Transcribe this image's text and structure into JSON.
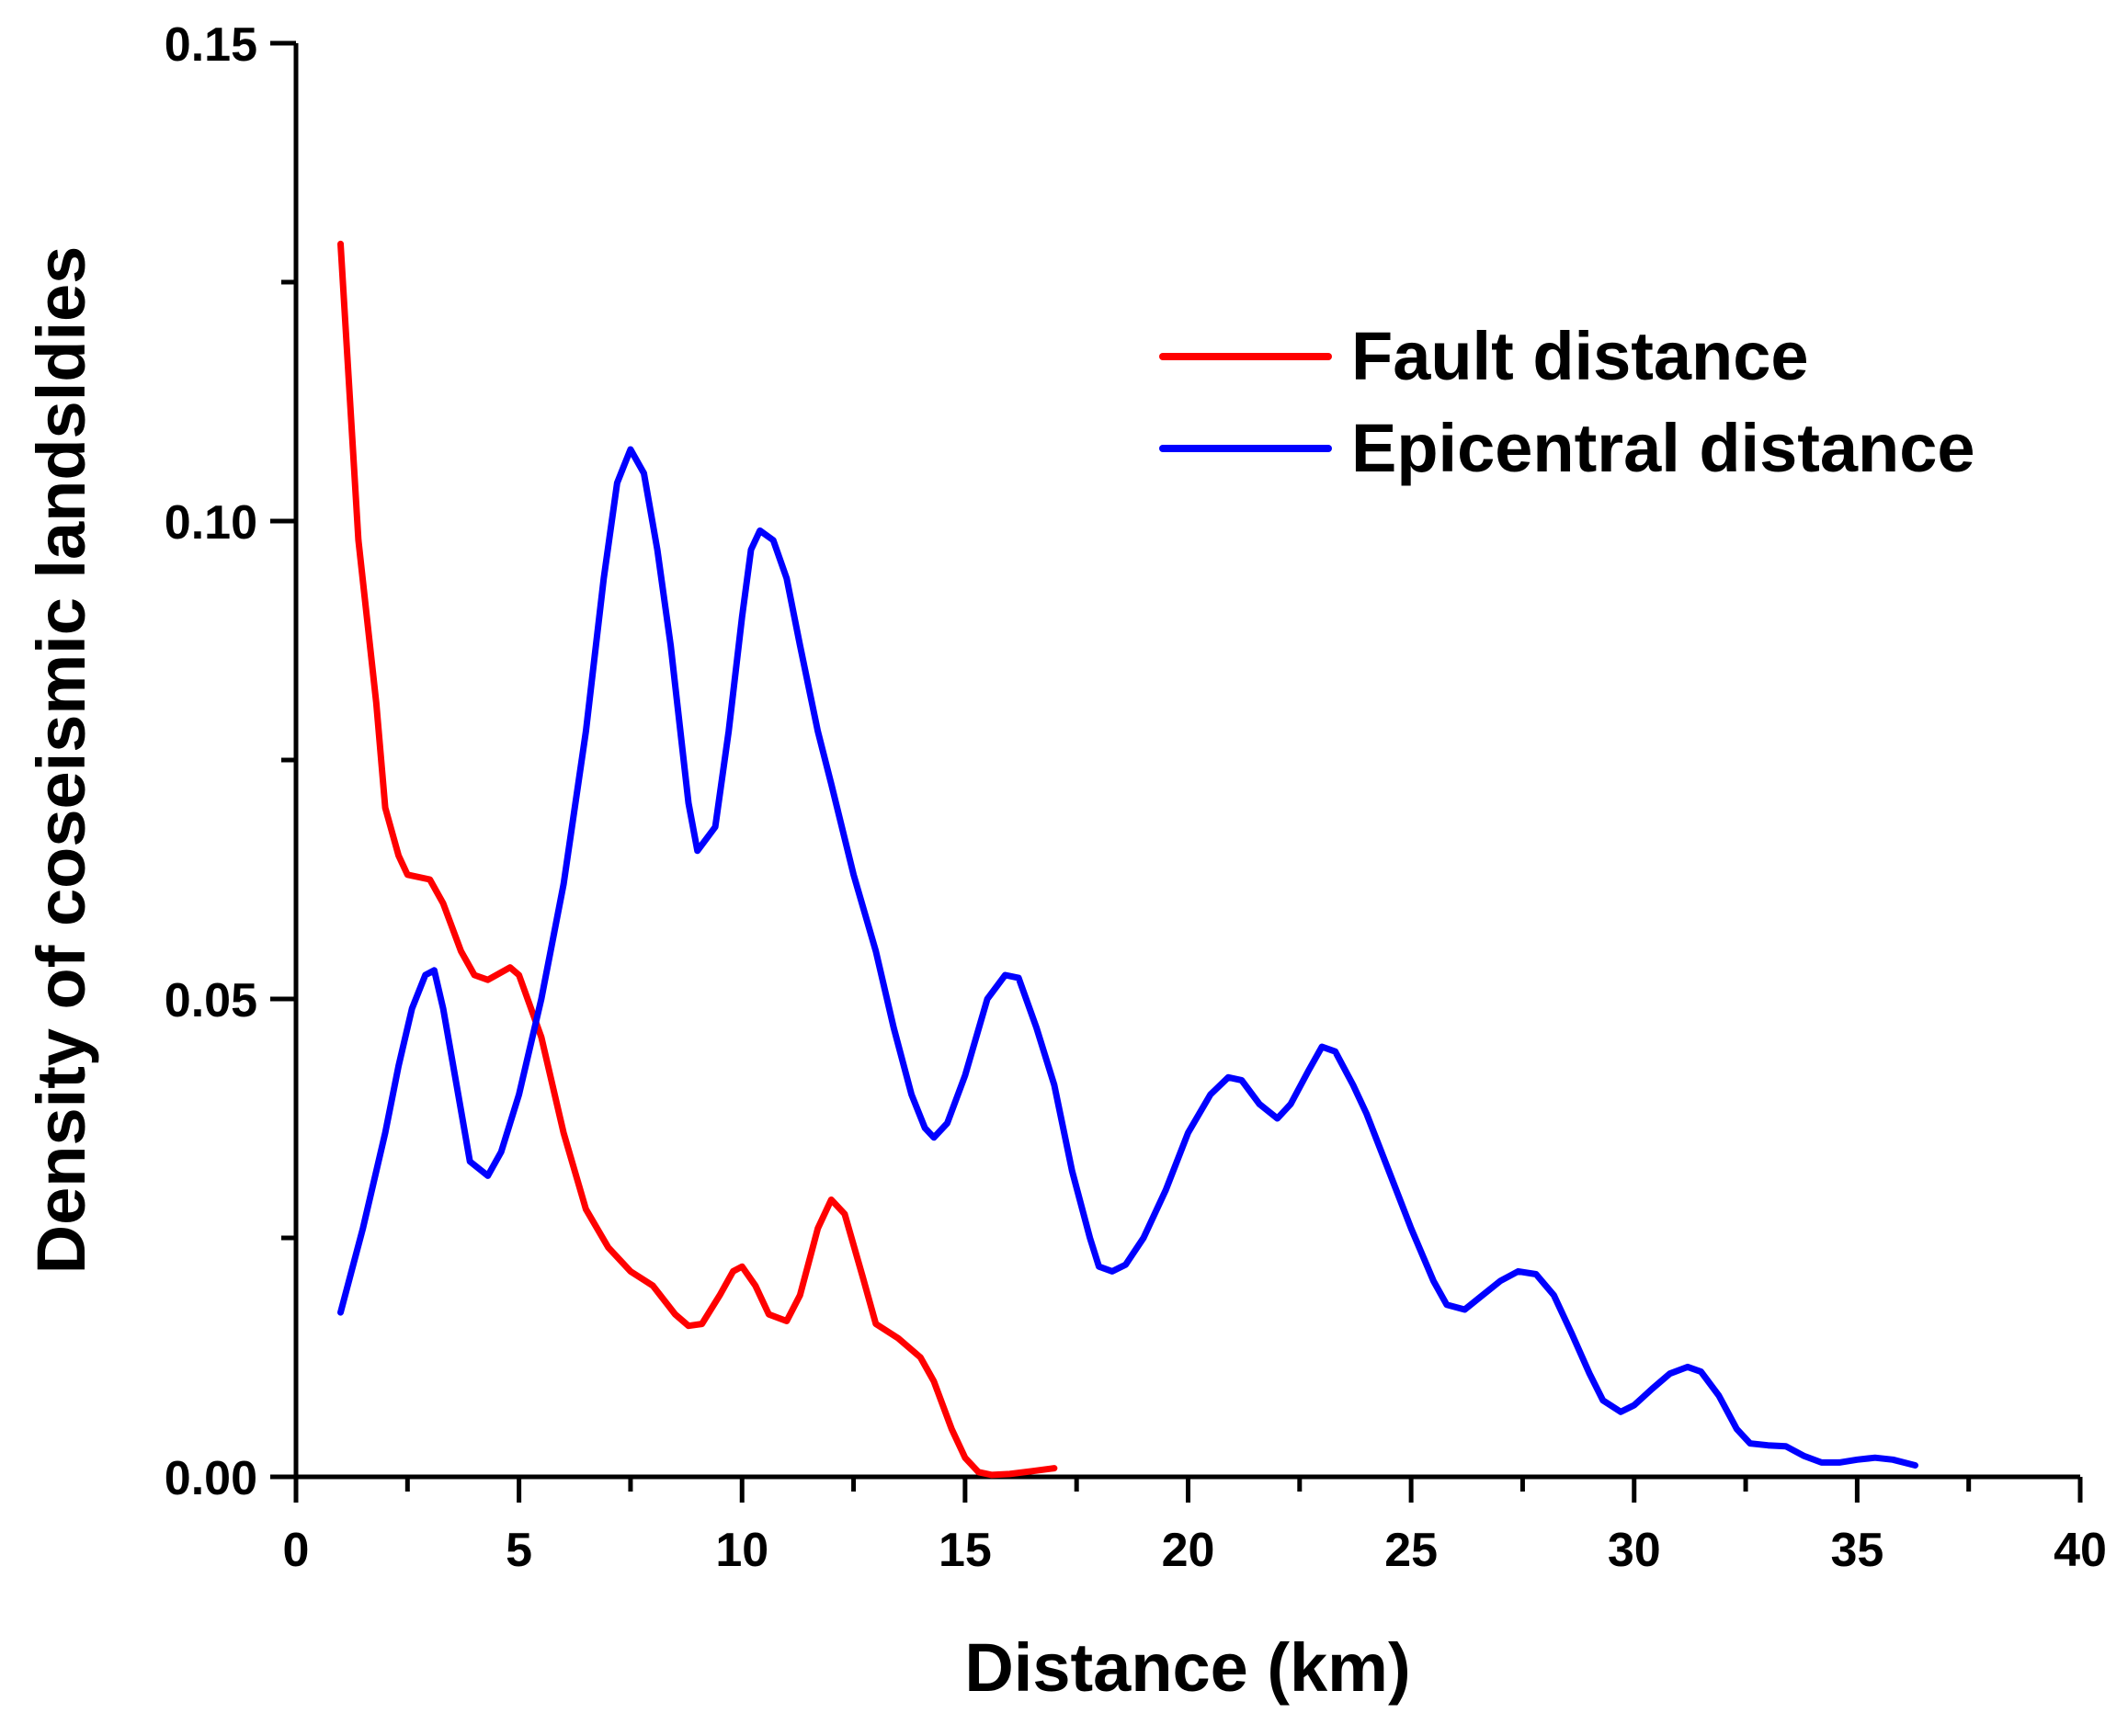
{
  "chart_data": {
    "type": "line",
    "title": "",
    "xlabel": "Distance (km)",
    "ylabel": "Density of coseismic landsldies",
    "xlim": [
      0,
      40
    ],
    "ylim": [
      0,
      0.15
    ],
    "x_ticks": [
      "0",
      "5",
      "10",
      "15",
      "20",
      "25",
      "30",
      "35",
      "40"
    ],
    "y_ticks": [
      "0.00",
      "0.05",
      "0.10",
      "0.15"
    ],
    "grid": false,
    "legend_position": "top-right",
    "series": [
      {
        "name": "Fault distance",
        "color": "#ff0000",
        "points": [
          [
            1.0,
            0.129
          ],
          [
            1.4,
            0.098
          ],
          [
            1.8,
            0.081
          ],
          [
            2.0,
            0.07
          ],
          [
            2.3,
            0.065
          ],
          [
            2.5,
            0.063
          ],
          [
            3.0,
            0.0625
          ],
          [
            3.3,
            0.06
          ],
          [
            3.7,
            0.055
          ],
          [
            4.0,
            0.0525
          ],
          [
            4.3,
            0.052
          ],
          [
            4.8,
            0.0533
          ],
          [
            5.0,
            0.0525
          ],
          [
            5.5,
            0.046
          ],
          [
            6.0,
            0.036
          ],
          [
            6.5,
            0.028
          ],
          [
            7.0,
            0.024
          ],
          [
            7.5,
            0.0215
          ],
          [
            8.0,
            0.02
          ],
          [
            8.5,
            0.017
          ],
          [
            8.8,
            0.0158
          ],
          [
            9.1,
            0.016
          ],
          [
            9.5,
            0.019
          ],
          [
            9.8,
            0.0215
          ],
          [
            10.0,
            0.022
          ],
          [
            10.3,
            0.02
          ],
          [
            10.6,
            0.017
          ],
          [
            11.0,
            0.0163
          ],
          [
            11.3,
            0.019
          ],
          [
            11.7,
            0.026
          ],
          [
            12.0,
            0.029
          ],
          [
            12.3,
            0.0275
          ],
          [
            12.7,
            0.021
          ],
          [
            13.0,
            0.016
          ],
          [
            13.5,
            0.0145
          ],
          [
            14.0,
            0.0125
          ],
          [
            14.3,
            0.01
          ],
          [
            14.7,
            0.005
          ],
          [
            15.0,
            0.002
          ],
          [
            15.3,
            0.0005
          ],
          [
            15.6,
            0.0002
          ],
          [
            16.0,
            0.0003
          ],
          [
            16.5,
            0.0006
          ],
          [
            17.0,
            0.0009
          ]
        ]
      },
      {
        "name": "Epicentral distance",
        "color": "#0000ff",
        "points": [
          [
            1.0,
            0.0172
          ],
          [
            1.5,
            0.026
          ],
          [
            2.0,
            0.036
          ],
          [
            2.3,
            0.043
          ],
          [
            2.6,
            0.049
          ],
          [
            2.9,
            0.0525
          ],
          [
            3.1,
            0.053
          ],
          [
            3.3,
            0.049
          ],
          [
            3.6,
            0.041
          ],
          [
            3.9,
            0.033
          ],
          [
            4.3,
            0.0315
          ],
          [
            4.6,
            0.034
          ],
          [
            5.0,
            0.04
          ],
          [
            5.5,
            0.05
          ],
          [
            6.0,
            0.062
          ],
          [
            6.5,
            0.078
          ],
          [
            6.9,
            0.094
          ],
          [
            7.2,
            0.104
          ],
          [
            7.5,
            0.1075
          ],
          [
            7.8,
            0.105
          ],
          [
            8.1,
            0.097
          ],
          [
            8.4,
            0.087
          ],
          [
            8.8,
            0.0705
          ],
          [
            9.0,
            0.0655
          ],
          [
            9.4,
            0.068
          ],
          [
            9.7,
            0.078
          ],
          [
            10.0,
            0.09
          ],
          [
            10.2,
            0.097
          ],
          [
            10.4,
            0.099
          ],
          [
            10.7,
            0.098
          ],
          [
            11.0,
            0.094
          ],
          [
            11.3,
            0.087
          ],
          [
            11.7,
            0.078
          ],
          [
            12.0,
            0.0725
          ],
          [
            12.5,
            0.063
          ],
          [
            13.0,
            0.055
          ],
          [
            13.4,
            0.047
          ],
          [
            13.8,
            0.04
          ],
          [
            14.1,
            0.0365
          ],
          [
            14.3,
            0.0355
          ],
          [
            14.6,
            0.037
          ],
          [
            15.0,
            0.042
          ],
          [
            15.5,
            0.05
          ],
          [
            15.9,
            0.0525
          ],
          [
            16.2,
            0.0522
          ],
          [
            16.6,
            0.047
          ],
          [
            17.0,
            0.041
          ],
          [
            17.4,
            0.032
          ],
          [
            17.8,
            0.025
          ],
          [
            18.0,
            0.022
          ],
          [
            18.3,
            0.0215
          ],
          [
            18.6,
            0.0222
          ],
          [
            19.0,
            0.025
          ],
          [
            19.5,
            0.03
          ],
          [
            20.0,
            0.036
          ],
          [
            20.5,
            0.04
          ],
          [
            20.9,
            0.0418
          ],
          [
            21.2,
            0.0415
          ],
          [
            21.6,
            0.039
          ],
          [
            22.0,
            0.0375
          ],
          [
            22.3,
            0.039
          ],
          [
            22.7,
            0.0425
          ],
          [
            23.0,
            0.045
          ],
          [
            23.3,
            0.0445
          ],
          [
            23.7,
            0.041
          ],
          [
            24.0,
            0.038
          ],
          [
            24.5,
            0.032
          ],
          [
            25.0,
            0.026
          ],
          [
            25.5,
            0.0205
          ],
          [
            25.8,
            0.018
          ],
          [
            26.2,
            0.0175
          ],
          [
            26.6,
            0.019
          ],
          [
            27.0,
            0.0205
          ],
          [
            27.4,
            0.0215
          ],
          [
            27.8,
            0.0212
          ],
          [
            28.2,
            0.019
          ],
          [
            28.6,
            0.015
          ],
          [
            29.0,
            0.0108
          ],
          [
            29.3,
            0.008
          ],
          [
            29.7,
            0.0068
          ],
          [
            30.0,
            0.0075
          ],
          [
            30.4,
            0.0092
          ],
          [
            30.8,
            0.0108
          ],
          [
            31.2,
            0.0115
          ],
          [
            31.5,
            0.011
          ],
          [
            31.9,
            0.0085
          ],
          [
            32.3,
            0.005
          ],
          [
            32.6,
            0.0035
          ],
          [
            33.0,
            0.0033
          ],
          [
            33.4,
            0.0032
          ],
          [
            33.8,
            0.0022
          ],
          [
            34.2,
            0.0015
          ],
          [
            34.6,
            0.0015
          ],
          [
            35.0,
            0.0018
          ],
          [
            35.4,
            0.002
          ],
          [
            35.8,
            0.0018
          ],
          [
            36.3,
            0.0012
          ]
        ]
      }
    ]
  }
}
